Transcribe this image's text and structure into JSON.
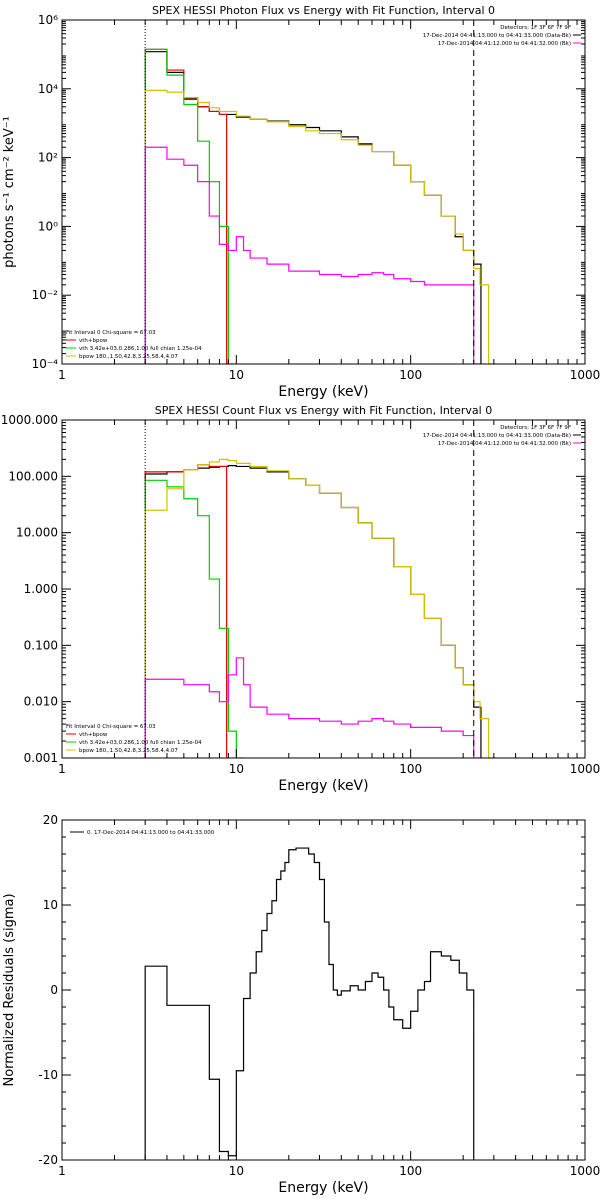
{
  "colors": {
    "data": "#000000",
    "fit_total": "#e00000",
    "vth": "#00cc00",
    "bkg": "#ff00ff",
    "bpow": "#d4c000"
  },
  "chart_data": [
    {
      "type": "line",
      "title": "SPEX HESSI Photon Flux vs Energy with Fit Function, Interval 0",
      "xlabel": "Energy (keV)",
      "ylabel": "photons s⁻¹ cm⁻² keV⁻¹",
      "xscale": "log",
      "yscale": "log",
      "xlim": [
        1,
        1000
      ],
      "ylim": [
        0.0001,
        1000000
      ],
      "xticks": [
        1,
        10,
        100,
        1000
      ],
      "xtick_labels": [
        "1",
        "10",
        "100",
        "1000"
      ],
      "yticks": [
        0.0001,
        0.01,
        1,
        100,
        10000,
        1000000
      ],
      "ytick_labels": [
        "10⁻⁴",
        "10⁻²",
        "10⁰",
        "10²",
        "10⁴",
        "10⁶"
      ],
      "vlines": {
        "dotted": 3,
        "dashed": 230
      },
      "info": [
        "Detectors: 1F 3F 6F 7F 9F",
        "17-Dec-2014 04:41:13.000 to 04:41:33.000 (Data-Bk)",
        "17-Dec-2014 04:41:12.000 to 04:41:32.000 (Bk)"
      ],
      "legend": [
        "Fit Interval 0   Chi-square = 67.03",
        "vth+bpow",
        "vth 3.42e+03,0.286,1.00  full chian 1.25e-04",
        "bpow 180.,1.50,42.8,3.25,58.4,4.07"
      ],
      "series": [
        {
          "name": "Data-Bk",
          "color": "data",
          "x": [
            3,
            4,
            5,
            6,
            7,
            8,
            10,
            12,
            15,
            20,
            25,
            30,
            40,
            50,
            60,
            80,
            100,
            120,
            150,
            180,
            200,
            230
          ],
          "y": [
            120000,
            30000,
            5000,
            3000,
            2200,
            1800,
            1500,
            1300,
            1150,
            900,
            750,
            600,
            400,
            250,
            150,
            60,
            20,
            8,
            2,
            0.5,
            0.2,
            0.08
          ]
        },
        {
          "name": "vth+bpow",
          "color": "fit_total",
          "x": [
            3,
            4,
            5,
            6,
            7,
            8
          ],
          "y": [
            140000,
            35000,
            5500,
            3000,
            2200,
            1800
          ]
        },
        {
          "name": "vth",
          "color": "vth",
          "x": [
            3,
            4,
            5,
            6,
            7,
            8,
            9
          ],
          "y": [
            140000,
            25000,
            3500,
            300,
            20,
            1,
            0.0001
          ]
        },
        {
          "name": "bpow",
          "color": "bpow",
          "x": [
            3,
            4,
            5,
            6,
            7,
            8,
            10,
            12,
            15,
            20,
            25,
            30,
            40,
            50,
            60,
            80,
            100,
            120,
            150,
            180,
            200,
            230,
            250,
            280
          ],
          "y": [
            9000,
            8000,
            5500,
            4000,
            2800,
            2200,
            1600,
            1300,
            1100,
            800,
            600,
            500,
            330,
            230,
            150,
            60,
            20,
            8,
            2,
            0.6,
            0.2,
            0.06,
            0.02,
            0.0001
          ]
        },
        {
          "name": "Bk",
          "color": "bkg",
          "x": [
            3,
            4,
            5,
            6,
            7,
            8,
            9,
            10,
            11,
            12,
            15,
            20,
            30,
            40,
            50,
            60,
            70,
            80,
            100,
            120,
            150,
            200,
            230
          ],
          "y": [
            200,
            90,
            60,
            20,
            2,
            0.3,
            0.2,
            0.5,
            0.2,
            0.12,
            0.08,
            0.05,
            0.04,
            0.035,
            0.04,
            0.045,
            0.04,
            0.03,
            0.025,
            0.02,
            0.02,
            0.02,
            0.0001
          ]
        }
      ]
    },
    {
      "type": "line",
      "title": "SPEX HESSI Count Flux vs Energy with Fit Function, Interval 0",
      "xlabel": "Energy (keV)",
      "ylabel": "",
      "xscale": "log",
      "yscale": "log",
      "xlim": [
        1,
        1000
      ],
      "ylim": [
        0.001,
        1000
      ],
      "xticks": [
        1,
        10,
        100,
        1000
      ],
      "xtick_labels": [
        "1",
        "10",
        "100",
        "1000"
      ],
      "yticks": [
        0.001,
        0.01,
        0.1,
        1,
        10,
        100,
        1000
      ],
      "ytick_labels": [
        "0.001",
        "0.010",
        "0.100",
        "1.000",
        "10.000",
        "100.000",
        "1000.000"
      ],
      "vlines": {
        "dotted": 3,
        "dashed": 230
      },
      "info": [
        "Detectors: 1F 3F 6F 7F 9F",
        "17-Dec-2014 04:41:13.000 to 04:41:33.000 (Data-Bk)",
        "17-Dec-2014 04:41:12.000 to 04:41:32.000 (Bk)"
      ],
      "legend": [
        "Fit Interval 0   Chi-square = 67.03",
        "vth+bpow",
        "vth 3.42e+03,0.286,1.00  full chian 1.25e-04",
        "bpow 180.,1.50,42.8,3.25,58.4,4.07"
      ],
      "series": [
        {
          "name": "Data-Bk",
          "color": "data",
          "x": [
            3,
            4,
            5,
            6,
            7,
            8,
            9,
            10,
            12,
            15,
            20,
            25,
            30,
            40,
            50,
            60,
            80,
            100,
            120,
            150,
            180,
            200,
            230
          ],
          "y": [
            110,
            120,
            130,
            140,
            145,
            150,
            155,
            150,
            140,
            120,
            90,
            70,
            50,
            28,
            15,
            8,
            2.5,
            0.8,
            0.3,
            0.1,
            0.04,
            0.02,
            0.008
          ]
        },
        {
          "name": "vth+bpow",
          "color": "fit_total",
          "x": [
            3,
            4,
            5,
            6,
            7,
            8
          ],
          "y": [
            120,
            120,
            130,
            160,
            150,
            150
          ]
        },
        {
          "name": "vth",
          "color": "vth",
          "x": [
            3,
            4,
            5,
            6,
            7,
            8,
            9,
            10
          ],
          "y": [
            85,
            65,
            40,
            20,
            1.5,
            0.2,
            0.003,
            0.001
          ]
        },
        {
          "name": "bpow",
          "color": "bpow",
          "x": [
            3,
            4,
            5,
            6,
            7,
            8,
            9,
            10,
            12,
            15,
            20,
            25,
            30,
            40,
            50,
            60,
            80,
            100,
            120,
            150,
            180,
            200,
            230,
            250,
            280
          ],
          "y": [
            25,
            60,
            130,
            160,
            180,
            200,
            190,
            170,
            150,
            125,
            90,
            70,
            50,
            28,
            15,
            8,
            2.5,
            0.8,
            0.3,
            0.1,
            0.04,
            0.02,
            0.01,
            0.005,
            0.001
          ]
        },
        {
          "name": "Bk",
          "color": "bkg",
          "x": [
            3,
            5,
            7,
            8,
            9,
            10,
            11,
            12,
            15,
            20,
            30,
            40,
            50,
            60,
            70,
            80,
            100,
            150,
            200,
            230
          ],
          "y": [
            0.025,
            0.02,
            0.015,
            0.01,
            0.03,
            0.06,
            0.02,
            0.008,
            0.006,
            0.005,
            0.0045,
            0.004,
            0.0045,
            0.005,
            0.0045,
            0.004,
            0.0035,
            0.003,
            0.0025,
            0.001
          ]
        }
      ]
    },
    {
      "type": "line",
      "title": "",
      "xlabel": "Energy (keV)",
      "ylabel": "Normalized Residuals (sigma)",
      "xscale": "log",
      "yscale": "linear",
      "xlim": [
        1,
        1000
      ],
      "ylim": [
        -20,
        20
      ],
      "xticks": [
        1,
        10,
        100,
        1000
      ],
      "xtick_labels": [
        "1",
        "10",
        "100",
        "1000"
      ],
      "yticks": [
        -20,
        -10,
        0,
        10,
        20
      ],
      "ytick_labels": [
        "-20",
        "-10",
        "0",
        "10",
        "20"
      ],
      "legend": [
        "0. 17-Dec-2014 04:41:13.000 to 04:41:33.000"
      ],
      "series": [
        {
          "name": "0. 17-Dec-2014 04:41:13.000 to 04:41:33.000",
          "color": "data",
          "step_edges": [
            3,
            4,
            5,
            6,
            7,
            8,
            9,
            10,
            11,
            12,
            13,
            14,
            15,
            16,
            17,
            18,
            19,
            20,
            22,
            24,
            26,
            28,
            30,
            32,
            34,
            36,
            38,
            40,
            45,
            50,
            55,
            60,
            65,
            70,
            75,
            80,
            90,
            100,
            110,
            120,
            130,
            150,
            170,
            190,
            210,
            230
          ],
          "values": [
            2.8,
            -1.8,
            -1.8,
            -1.8,
            -10.5,
            -19,
            -19.5,
            -9.5,
            -1,
            2,
            4.5,
            7,
            9,
            10.5,
            13,
            14,
            15,
            16.5,
            16.7,
            16.7,
            16,
            15,
            13,
            8,
            3,
            0,
            -0.6,
            -0.1,
            0.5,
            0,
            1,
            2,
            1.5,
            0,
            -2,
            -3.5,
            -4.5,
            -2.5,
            0,
            1,
            4.5,
            4,
            3.5,
            2,
            0
          ]
        }
      ]
    }
  ]
}
